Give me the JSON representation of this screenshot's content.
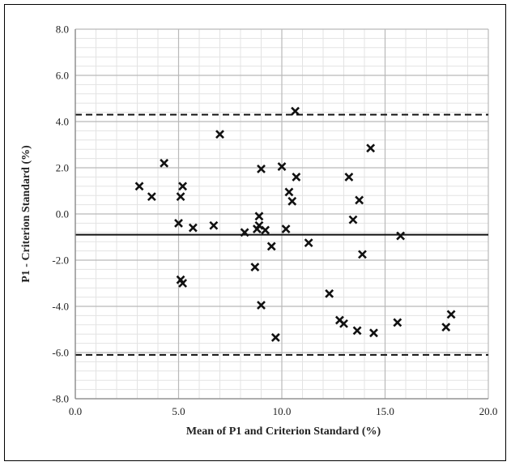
{
  "chart_data": {
    "type": "scatter",
    "title": "",
    "xlabel": "Mean of P1 and Criterion Standard (%)",
    "ylabel": "P1 - Criterion Standard (%)",
    "xlim": [
      0,
      20
    ],
    "ylim": [
      -8,
      8
    ],
    "x_ticks": [
      "0.0",
      "5.0",
      "10.0",
      "15.0",
      "20.0"
    ],
    "y_ticks": [
      "-8.0",
      "-6.0",
      "-4.0",
      "-2.0",
      "0.0",
      "2.0",
      "4.0",
      "6.0",
      "8.0"
    ],
    "grid": true,
    "marker": "x",
    "mean_line": -0.9,
    "limits_of_agreement": [
      4.3,
      -6.1
    ],
    "points": [
      {
        "x": 3.1,
        "y": 1.2
      },
      {
        "x": 3.7,
        "y": 0.75
      },
      {
        "x": 4.3,
        "y": 2.2
      },
      {
        "x": 5.0,
        "y": -0.4
      },
      {
        "x": 5.1,
        "y": 0.75
      },
      {
        "x": 5.2,
        "y": 1.2
      },
      {
        "x": 5.1,
        "y": -2.85
      },
      {
        "x": 5.2,
        "y": -3.0
      },
      {
        "x": 5.7,
        "y": -0.6
      },
      {
        "x": 6.7,
        "y": -0.5
      },
      {
        "x": 7.0,
        "y": 3.45
      },
      {
        "x": 8.2,
        "y": -0.8
      },
      {
        "x": 8.7,
        "y": -2.3
      },
      {
        "x": 8.8,
        "y": -0.65
      },
      {
        "x": 8.9,
        "y": -0.1
      },
      {
        "x": 8.9,
        "y": -0.5
      },
      {
        "x": 9.0,
        "y": 1.95
      },
      {
        "x": 9.0,
        "y": -3.95
      },
      {
        "x": 9.2,
        "y": -0.7
      },
      {
        "x": 9.5,
        "y": -1.4
      },
      {
        "x": 9.7,
        "y": -5.35
      },
      {
        "x": 10.0,
        "y": 2.05
      },
      {
        "x": 10.2,
        "y": -0.65
      },
      {
        "x": 10.35,
        "y": 0.95
      },
      {
        "x": 10.5,
        "y": 0.55
      },
      {
        "x": 10.65,
        "y": 4.45
      },
      {
        "x": 10.7,
        "y": 1.6
      },
      {
        "x": 11.3,
        "y": -1.25
      },
      {
        "x": 12.3,
        "y": -3.45
      },
      {
        "x": 12.8,
        "y": -4.6
      },
      {
        "x": 13.0,
        "y": -4.75
      },
      {
        "x": 13.25,
        "y": 1.6
      },
      {
        "x": 13.45,
        "y": -0.25
      },
      {
        "x": 13.65,
        "y": -5.05
      },
      {
        "x": 13.75,
        "y": 0.6
      },
      {
        "x": 13.9,
        "y": -1.75
      },
      {
        "x": 14.3,
        "y": 2.85
      },
      {
        "x": 14.45,
        "y": -5.15
      },
      {
        "x": 15.6,
        "y": -4.7
      },
      {
        "x": 15.75,
        "y": -0.95
      },
      {
        "x": 17.95,
        "y": -4.9
      },
      {
        "x": 18.2,
        "y": -4.35
      }
    ]
  }
}
